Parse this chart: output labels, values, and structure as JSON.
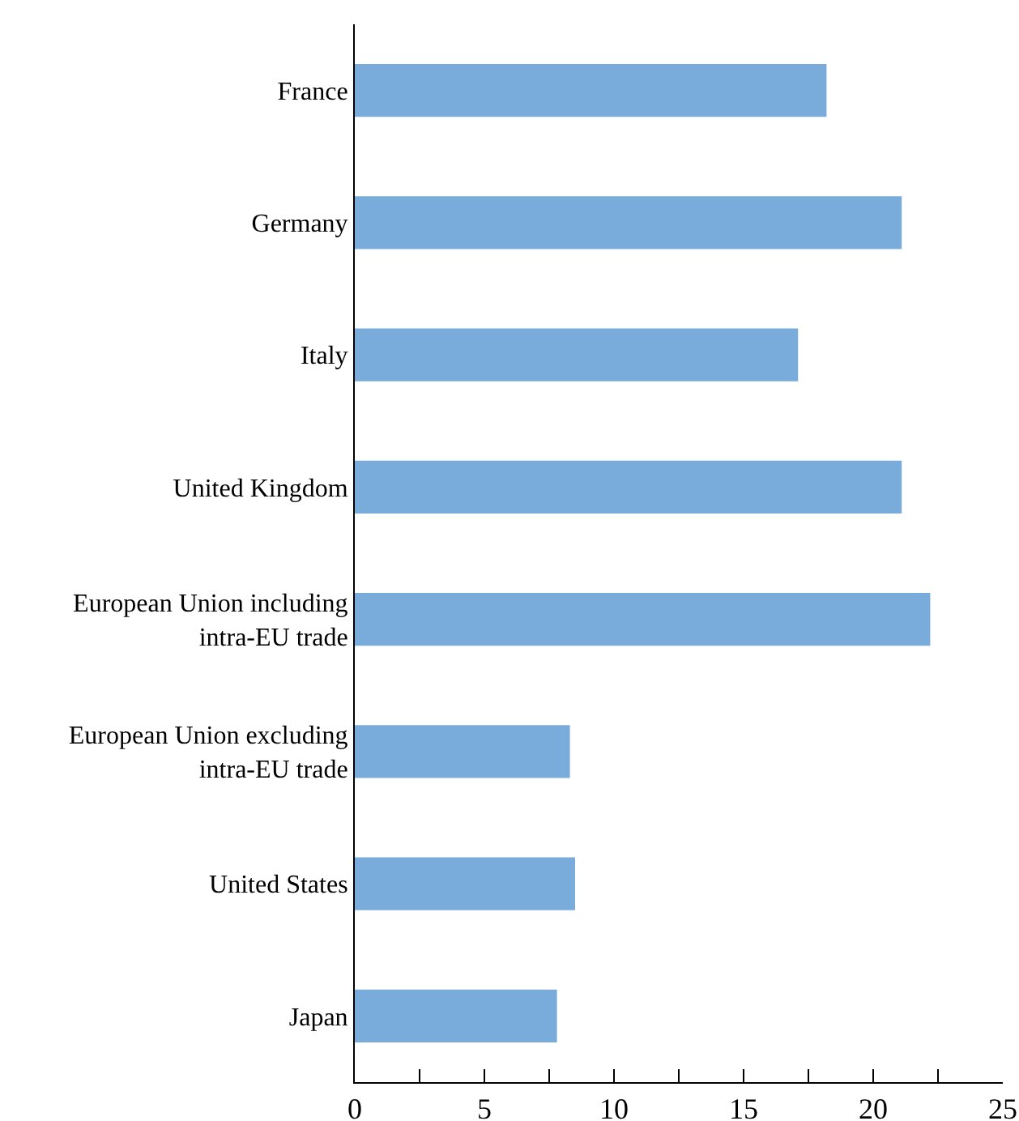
{
  "chart_data": {
    "type": "bar",
    "orientation": "horizontal",
    "categories": [
      "France",
      "Germany",
      "Italy",
      "United Kingdom",
      "European Union including\nintra-EU trade",
      "European Union excluding\nintra-EU trade",
      "United States",
      "Japan"
    ],
    "values": [
      18.2,
      21.1,
      17.1,
      21.1,
      22.2,
      8.3,
      8.5,
      7.8
    ],
    "color": "#7aacdb",
    "xlim": [
      0,
      25
    ],
    "xticks": [
      0,
      {
        "value": 2.5,
        "label": null
      },
      5,
      {
        "value": 7.5,
        "label": null
      },
      10,
      {
        "value": 12.5,
        "label": null
      },
      15,
      {
        "value": 17.5,
        "label": null
      },
      20,
      {
        "value": 22.5,
        "label": null
      },
      25
    ]
  }
}
